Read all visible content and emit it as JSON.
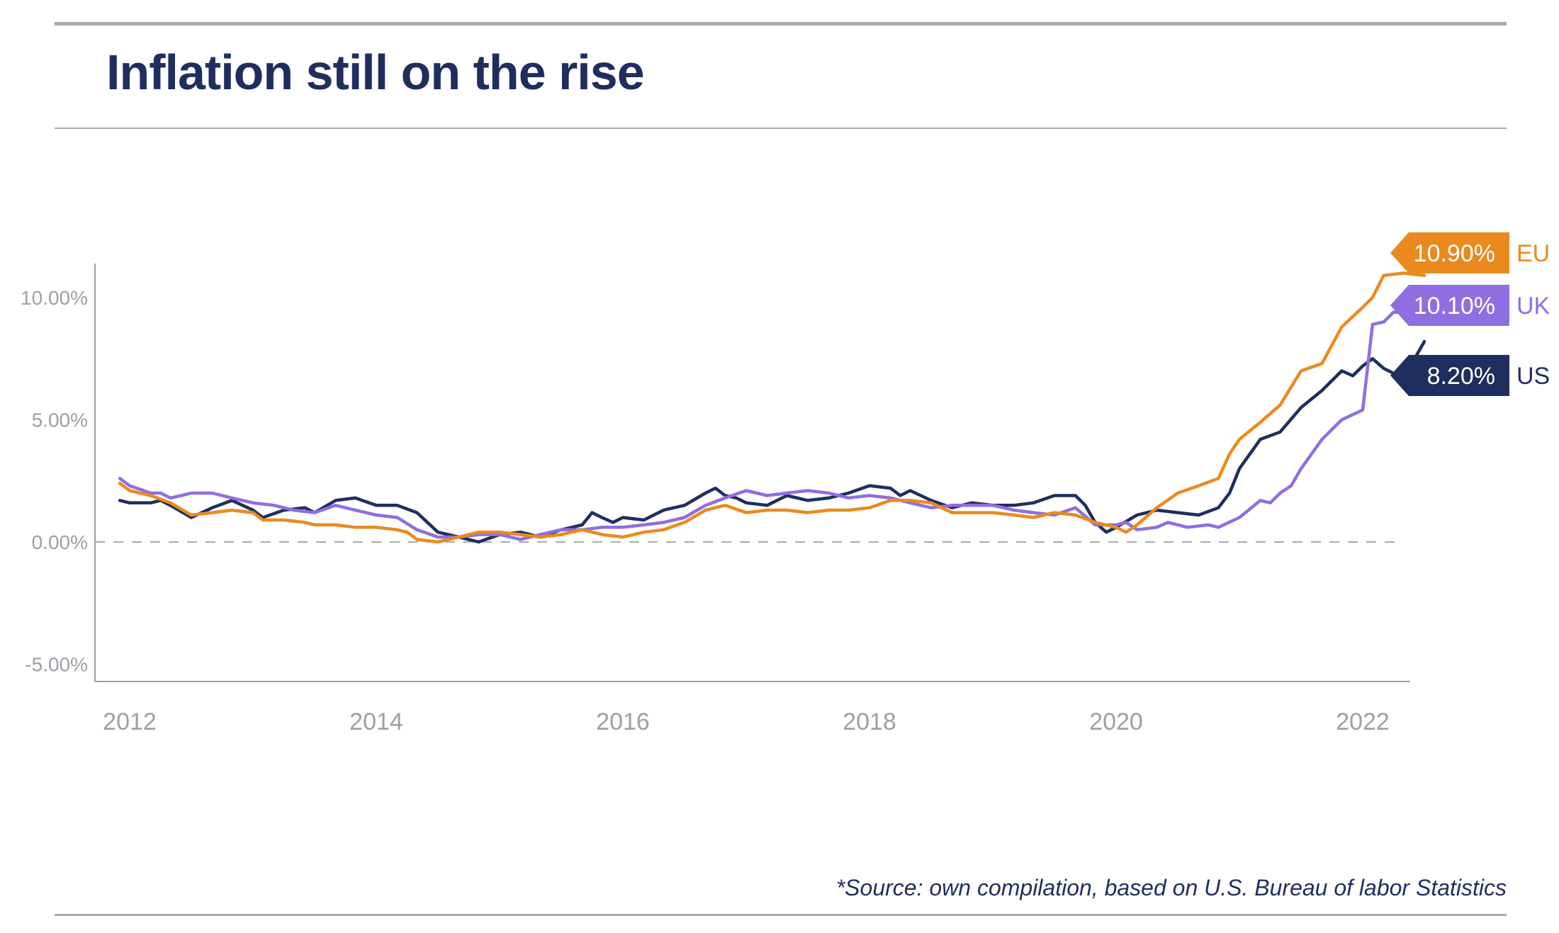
{
  "title": "Inflation still on the rise",
  "source": "*Source: own compilation, based on U.S. Bureau of labor Statistics",
  "chart_data": {
    "type": "line",
    "title": "Inflation still on the rise",
    "xlabel": "",
    "ylabel": "",
    "xlim": [
      2011.8,
      2022.95
    ],
    "ylim": [
      -5.5,
      11.5
    ],
    "yticks": [
      {
        "value": 10,
        "label": "10.00%"
      },
      {
        "value": 5,
        "label": "5.00%"
      },
      {
        "value": 0,
        "label": "0.00%"
      },
      {
        "value": -5,
        "label": "-5.00%"
      }
    ],
    "xticks": [
      {
        "value": 2012,
        "label": "2012"
      },
      {
        "value": 2014,
        "label": "2014"
      },
      {
        "value": 2016,
        "label": "2016"
      },
      {
        "value": 2018,
        "label": "2018"
      },
      {
        "value": 2020,
        "label": "2020"
      },
      {
        "value": 2022,
        "label": "2022"
      }
    ],
    "zero_line": "dashed",
    "grid": false,
    "legend": "end-labels",
    "series": [
      {
        "name": "US",
        "end_label": "8.20%",
        "color": "#1f2e5f",
        "points": [
          [
            2011.92,
            1.7
          ],
          [
            2012.0,
            1.6
          ],
          [
            2012.17,
            1.6
          ],
          [
            2012.25,
            1.7
          ],
          [
            2012.33,
            1.5
          ],
          [
            2012.5,
            1.0
          ],
          [
            2012.67,
            1.4
          ],
          [
            2012.83,
            1.7
          ],
          [
            2013.0,
            1.3
          ],
          [
            2013.08,
            1.0
          ],
          [
            2013.25,
            1.3
          ],
          [
            2013.42,
            1.4
          ],
          [
            2013.5,
            1.2
          ],
          [
            2013.67,
            1.7
          ],
          [
            2013.83,
            1.8
          ],
          [
            2014.0,
            1.5
          ],
          [
            2014.17,
            1.5
          ],
          [
            2014.33,
            1.2
          ],
          [
            2014.5,
            0.4
          ],
          [
            2014.67,
            0.2
          ],
          [
            2014.83,
            0.0
          ],
          [
            2015.0,
            0.3
          ],
          [
            2015.17,
            0.4
          ],
          [
            2015.33,
            0.2
          ],
          [
            2015.5,
            0.5
          ],
          [
            2015.67,
            0.7
          ],
          [
            2015.75,
            1.2
          ],
          [
            2015.83,
            1.0
          ],
          [
            2015.92,
            0.8
          ],
          [
            2016.0,
            1.0
          ],
          [
            2016.17,
            0.9
          ],
          [
            2016.33,
            1.3
          ],
          [
            2016.5,
            1.5
          ],
          [
            2016.67,
            2.0
          ],
          [
            2016.75,
            2.2
          ],
          [
            2016.83,
            1.9
          ],
          [
            2016.92,
            1.8
          ],
          [
            2017.0,
            1.6
          ],
          [
            2017.17,
            1.5
          ],
          [
            2017.33,
            1.9
          ],
          [
            2017.5,
            1.7
          ],
          [
            2017.67,
            1.8
          ],
          [
            2017.83,
            2.0
          ],
          [
            2018.0,
            2.3
          ],
          [
            2018.17,
            2.2
          ],
          [
            2018.25,
            1.9
          ],
          [
            2018.33,
            2.1
          ],
          [
            2018.5,
            1.7
          ],
          [
            2018.67,
            1.4
          ],
          [
            2018.83,
            1.6
          ],
          [
            2019.0,
            1.5
          ],
          [
            2019.17,
            1.5
          ],
          [
            2019.33,
            1.6
          ],
          [
            2019.5,
            1.9
          ],
          [
            2019.67,
            1.9
          ],
          [
            2019.75,
            1.5
          ],
          [
            2019.83,
            0.8
          ],
          [
            2019.92,
            0.4
          ],
          [
            2020.0,
            0.6
          ],
          [
            2020.17,
            1.1
          ],
          [
            2020.33,
            1.3
          ],
          [
            2020.5,
            1.2
          ],
          [
            2020.67,
            1.1
          ],
          [
            2020.83,
            1.4
          ],
          [
            2020.92,
            2.0
          ],
          [
            2021.0,
            3.0
          ],
          [
            2021.17,
            4.2
          ],
          [
            2021.33,
            4.5
          ],
          [
            2021.5,
            5.5
          ],
          [
            2021.67,
            6.2
          ],
          [
            2021.83,
            7.0
          ],
          [
            2021.92,
            6.8
          ],
          [
            2022.0,
            7.2
          ],
          [
            2022.08,
            7.5
          ],
          [
            2022.17,
            7.1
          ],
          [
            2022.33,
            6.7
          ],
          [
            2022.5,
            8.2
          ]
        ]
      },
      {
        "name": "UK",
        "end_label": "10.10%",
        "color": "#8f6ee1",
        "points": [
          [
            2011.92,
            2.6
          ],
          [
            2012.0,
            2.3
          ],
          [
            2012.17,
            2.0
          ],
          [
            2012.25,
            2.0
          ],
          [
            2012.33,
            1.8
          ],
          [
            2012.42,
            1.9
          ],
          [
            2012.5,
            2.0
          ],
          [
            2012.67,
            2.0
          ],
          [
            2012.83,
            1.8
          ],
          [
            2013.0,
            1.6
          ],
          [
            2013.17,
            1.5
          ],
          [
            2013.33,
            1.3
          ],
          [
            2013.5,
            1.2
          ],
          [
            2013.67,
            1.5
          ],
          [
            2013.83,
            1.3
          ],
          [
            2014.0,
            1.1
          ],
          [
            2014.17,
            1.0
          ],
          [
            2014.33,
            0.5
          ],
          [
            2014.5,
            0.2
          ],
          [
            2014.67,
            0.2
          ],
          [
            2014.83,
            0.3
          ],
          [
            2015.0,
            0.3
          ],
          [
            2015.17,
            0.1
          ],
          [
            2015.33,
            0.3
          ],
          [
            2015.5,
            0.5
          ],
          [
            2015.67,
            0.5
          ],
          [
            2015.83,
            0.6
          ],
          [
            2016.0,
            0.6
          ],
          [
            2016.17,
            0.7
          ],
          [
            2016.33,
            0.8
          ],
          [
            2016.5,
            1.0
          ],
          [
            2016.67,
            1.5
          ],
          [
            2016.83,
            1.8
          ],
          [
            2017.0,
            2.1
          ],
          [
            2017.17,
            1.9
          ],
          [
            2017.33,
            2.0
          ],
          [
            2017.5,
            2.1
          ],
          [
            2017.67,
            2.0
          ],
          [
            2017.83,
            1.8
          ],
          [
            2018.0,
            1.9
          ],
          [
            2018.17,
            1.8
          ],
          [
            2018.33,
            1.6
          ],
          [
            2018.5,
            1.4
          ],
          [
            2018.67,
            1.5
          ],
          [
            2018.83,
            1.5
          ],
          [
            2019.0,
            1.5
          ],
          [
            2019.17,
            1.3
          ],
          [
            2019.33,
            1.2
          ],
          [
            2019.5,
            1.1
          ],
          [
            2019.67,
            1.4
          ],
          [
            2019.83,
            0.7
          ],
          [
            2020.0,
            0.7
          ],
          [
            2020.08,
            0.8
          ],
          [
            2020.17,
            0.5
          ],
          [
            2020.33,
            0.6
          ],
          [
            2020.42,
            0.8
          ],
          [
            2020.58,
            0.6
          ],
          [
            2020.75,
            0.7
          ],
          [
            2020.83,
            0.6
          ],
          [
            2021.0,
            1.0
          ],
          [
            2021.17,
            1.7
          ],
          [
            2021.25,
            1.6
          ],
          [
            2021.33,
            2.0
          ],
          [
            2021.42,
            2.3
          ],
          [
            2021.5,
            3.0
          ],
          [
            2021.67,
            4.2
          ],
          [
            2021.83,
            5.0
          ],
          [
            2022.0,
            5.4
          ],
          [
            2022.08,
            8.9
          ],
          [
            2022.17,
            9.0
          ],
          [
            2022.25,
            9.4
          ],
          [
            2022.33,
            9.4
          ],
          [
            2022.5,
            10.1
          ]
        ]
      },
      {
        "name": "EU",
        "end_label": "10.90%",
        "color": "#ea8a1e",
        "points": [
          [
            2011.92,
            2.4
          ],
          [
            2012.0,
            2.1
          ],
          [
            2012.17,
            1.9
          ],
          [
            2012.33,
            1.6
          ],
          [
            2012.5,
            1.1
          ],
          [
            2012.67,
            1.2
          ],
          [
            2012.83,
            1.3
          ],
          [
            2013.0,
            1.2
          ],
          [
            2013.08,
            0.9
          ],
          [
            2013.25,
            0.9
          ],
          [
            2013.42,
            0.8
          ],
          [
            2013.5,
            0.7
          ],
          [
            2013.67,
            0.7
          ],
          [
            2013.83,
            0.6
          ],
          [
            2014.0,
            0.6
          ],
          [
            2014.17,
            0.5
          ],
          [
            2014.25,
            0.4
          ],
          [
            2014.33,
            0.1
          ],
          [
            2014.5,
            0.0
          ],
          [
            2014.67,
            0.2
          ],
          [
            2014.83,
            0.4
          ],
          [
            2015.0,
            0.4
          ],
          [
            2015.17,
            0.3
          ],
          [
            2015.33,
            0.2
          ],
          [
            2015.5,
            0.3
          ],
          [
            2015.67,
            0.5
          ],
          [
            2015.83,
            0.3
          ],
          [
            2016.0,
            0.2
          ],
          [
            2016.17,
            0.4
          ],
          [
            2016.33,
            0.5
          ],
          [
            2016.5,
            0.8
          ],
          [
            2016.67,
            1.3
          ],
          [
            2016.83,
            1.5
          ],
          [
            2017.0,
            1.2
          ],
          [
            2017.17,
            1.3
          ],
          [
            2017.33,
            1.3
          ],
          [
            2017.5,
            1.2
          ],
          [
            2017.67,
            1.3
          ],
          [
            2017.83,
            1.3
          ],
          [
            2018.0,
            1.4
          ],
          [
            2018.17,
            1.7
          ],
          [
            2018.33,
            1.7
          ],
          [
            2018.5,
            1.6
          ],
          [
            2018.67,
            1.2
          ],
          [
            2018.83,
            1.2
          ],
          [
            2019.0,
            1.2
          ],
          [
            2019.17,
            1.1
          ],
          [
            2019.33,
            1.0
          ],
          [
            2019.5,
            1.2
          ],
          [
            2019.67,
            1.1
          ],
          [
            2019.83,
            0.8
          ],
          [
            2020.0,
            0.6
          ],
          [
            2020.08,
            0.4
          ],
          [
            2020.17,
            0.7
          ],
          [
            2020.33,
            1.4
          ],
          [
            2020.5,
            2.0
          ],
          [
            2020.67,
            2.3
          ],
          [
            2020.83,
            2.6
          ],
          [
            2020.92,
            3.6
          ],
          [
            2021.0,
            4.2
          ],
          [
            2021.17,
            4.9
          ],
          [
            2021.33,
            5.6
          ],
          [
            2021.5,
            7.0
          ],
          [
            2021.67,
            7.3
          ],
          [
            2021.83,
            8.8
          ],
          [
            2022.0,
            9.6
          ],
          [
            2022.08,
            10.0
          ],
          [
            2022.17,
            10.9
          ],
          [
            2022.33,
            11.0
          ],
          [
            2022.5,
            10.9
          ]
        ]
      }
    ]
  }
}
